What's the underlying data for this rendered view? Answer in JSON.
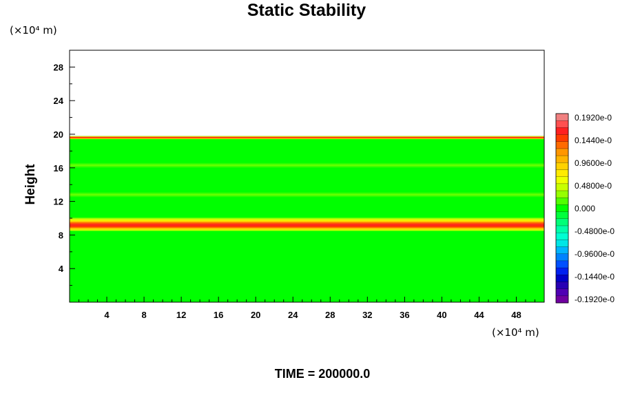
{
  "chart_data": {
    "type": "heatmap",
    "title": "Static Stability",
    "ylabel": "Height",
    "x_unit": "(×10⁴ m)",
    "y_unit": "(×10⁴ m)",
    "x_ticks": [
      4,
      8,
      12,
      16,
      20,
      24,
      28,
      32,
      36,
      40,
      44,
      48
    ],
    "y_ticks": [
      4,
      8,
      12,
      16,
      20,
      24,
      28
    ],
    "xlim": [
      0,
      51
    ],
    "ylim": [
      0,
      30
    ],
    "colorbar": {
      "labels": [
        "0.1920e-0",
        "0.1440e-0",
        "0.9600e-0",
        "0.4800e-0",
        "0.000",
        "-0.4800e-0",
        "-0.9600e-0",
        "-0.1440e-0",
        "-0.1920e-0"
      ],
      "colors": [
        "#f08080",
        "#ff5050",
        "#ff2020",
        "#ff3c00",
        "#ff6a00",
        "#ff9600",
        "#ffb400",
        "#ffd200",
        "#ffeb00",
        "#f0ff00",
        "#c8ff00",
        "#96ff00",
        "#50ff00",
        "#00ff00",
        "#00ff3c",
        "#00ff78",
        "#00ffaa",
        "#00ffd2",
        "#00e6e6",
        "#00b4ff",
        "#0082ff",
        "#0050ff",
        "#0020f0",
        "#0000c8",
        "#2800b4",
        "#5000b4",
        "#7000a0"
      ]
    },
    "field": {
      "background_value": 0.0,
      "background_color": "#00ff00",
      "data_top": 19.7,
      "features": [
        {
          "name": "upper-boundary-band",
          "height": 19.6,
          "value": 0.16
        },
        {
          "name": "middle-stable-layer",
          "height": 9.3,
          "value": 0.17
        },
        {
          "name": "faint-layer-upper",
          "height": 16.3,
          "value": 0.02
        },
        {
          "name": "faint-layer-lower",
          "height": 12.8,
          "value": 0.01
        }
      ]
    },
    "grid": false
  },
  "footer": {
    "time_label": "TIME = 200000.0"
  }
}
